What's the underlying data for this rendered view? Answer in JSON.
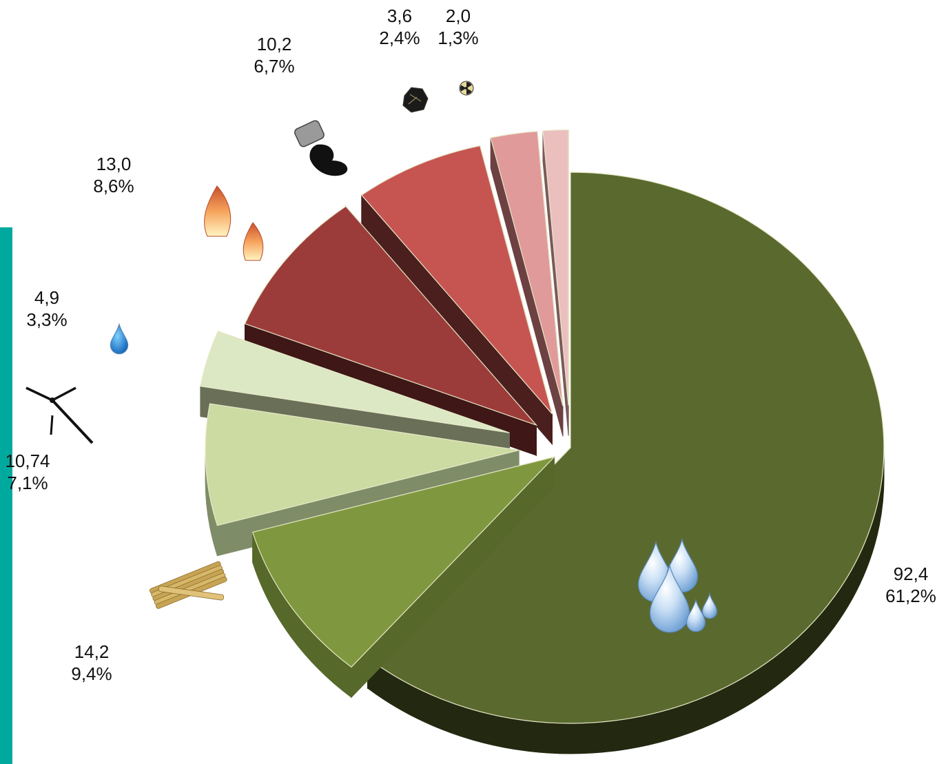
{
  "chart_data": {
    "type": "pie",
    "title": "",
    "slices": [
      {
        "value_label": "92,4",
        "pct_label": "61,2%",
        "pct": 61.2,
        "icon": "water-drops-icon",
        "top": "#5a6a2f",
        "side": "#232910"
      },
      {
        "value_label": "14,2",
        "pct_label": "9,4%",
        "pct": 9.4,
        "icon": "sugarcane-icon",
        "top": "#7f983f",
        "side": "#56692a"
      },
      {
        "value_label": "10,74",
        "pct_label": "7,1%",
        "pct": 7.1,
        "icon": "wind-turbine-icon",
        "top": "#cbdba2",
        "side": "#7f8c68"
      },
      {
        "value_label": "4,9",
        "pct_label": "3,3%",
        "pct": 3.3,
        "icon": "water-drop-icon",
        "top": "#dce8c4",
        "side": "#6a6f58"
      },
      {
        "value_label": "13,0",
        "pct_label": "8,6%",
        "pct": 8.6,
        "icon": "flames-icon",
        "top": "#9c3c3a",
        "side": "#3e1716"
      },
      {
        "value_label": "10,2",
        "pct_label": "6,7%",
        "pct": 6.7,
        "icon": "oil-barrel-icon",
        "top": "#c65552",
        "side": "#4a1f1e"
      },
      {
        "value_label": "3,6",
        "pct_label": "2,4%",
        "pct": 2.4,
        "icon": "coal-icon",
        "top": "#e09a99",
        "side": "#6d4141"
      },
      {
        "value_label": "2,0",
        "pct_label": "1,3%",
        "pct": 1.3,
        "icon": "nuclear-icon",
        "top": "#ecbfbf",
        "side": "#7a5a5a"
      }
    ],
    "legend": "none"
  },
  "accent": {
    "left_strip": "#00a99d"
  }
}
